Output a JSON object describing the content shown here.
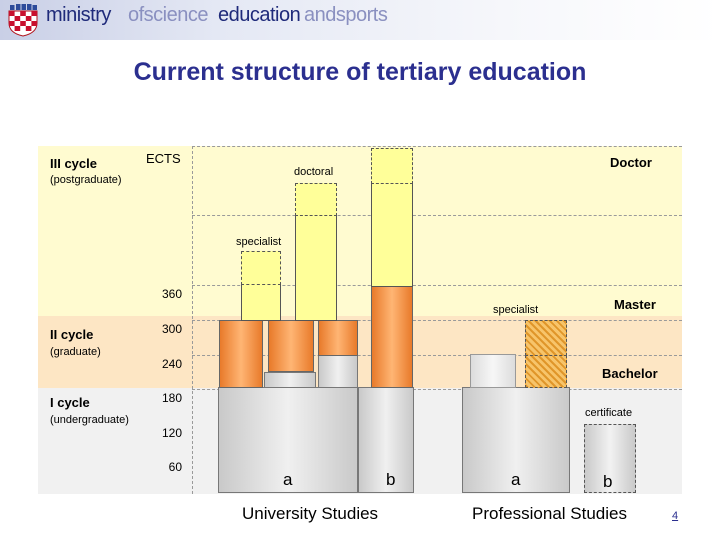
{
  "header": {
    "brand": [
      {
        "text": "ministry",
        "color": "#1f2a7a"
      },
      {
        "text": "ofscience",
        "color": "#8a90c0"
      },
      {
        "text": "education",
        "color": "#1f2a7a"
      },
      {
        "text": "andsports",
        "color": "#8a90c0"
      }
    ]
  },
  "title": "Current structure of tertiary education",
  "cycles": {
    "third": {
      "name": "III cycle",
      "sub": "(postgraduate)"
    },
    "second": {
      "name": "II cycle",
      "sub": "(graduate)"
    },
    "first": {
      "name": "I cycle",
      "sub": "(undergraduate)"
    }
  },
  "ects": {
    "label": "ECTS",
    "ticks": [
      "360",
      "300",
      "240",
      "180",
      "120",
      "60"
    ]
  },
  "degrees": {
    "doctor": "Doctor",
    "master": "Master",
    "bachelor": "Bachelor"
  },
  "annotations": {
    "doctoral": "doctoral",
    "specialist_top": "specialist",
    "specialist_mid": "specialist",
    "certificate": "certificate"
  },
  "groups": {
    "university": {
      "title": "University Studies",
      "a": "a",
      "b": "b"
    },
    "professional": {
      "title": "Professional Studies",
      "a": "a",
      "b": "b"
    }
  },
  "page_number": "4",
  "colors": {
    "band_third": "#fffbd0",
    "band_second": "#fde6c4",
    "band_first": "#f1f1f1",
    "title": "#2b2f8f"
  }
}
